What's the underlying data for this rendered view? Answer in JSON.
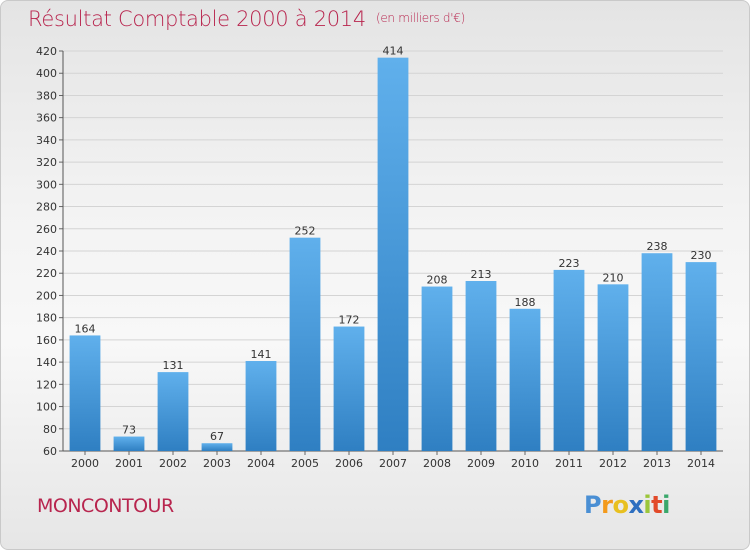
{
  "title": "Résultat Comptable 2000 à 2014",
  "unit_note": "(en milliers d'€)",
  "city": "MONCONTOUR",
  "logo": {
    "letters": [
      "P",
      "r",
      "o",
      "x",
      "i",
      "t",
      "i"
    ],
    "colors": [
      "#4a8fd4",
      "#f39a1c",
      "#e8c020",
      "#2e6fc0",
      "#9bc63a",
      "#e24a2a",
      "#3aa86b"
    ]
  },
  "colors": {
    "title": "#b8254e",
    "bar_light": "#60b0ec",
    "bar_dark": "#2f7fc2"
  },
  "chart_data": {
    "type": "bar",
    "title": "Résultat Comptable 2000 à 2014",
    "xlabel": "",
    "ylabel": "",
    "categories": [
      "2000",
      "2001",
      "2002",
      "2003",
      "2004",
      "2005",
      "2006",
      "2007",
      "2008",
      "2009",
      "2010",
      "2011",
      "2012",
      "2013",
      "2014"
    ],
    "values": [
      164,
      73,
      131,
      67,
      141,
      252,
      172,
      414,
      208,
      213,
      188,
      223,
      210,
      238,
      230
    ],
    "ylim": [
      60,
      420
    ],
    "yticks": [
      60,
      80,
      100,
      120,
      140,
      160,
      180,
      200,
      220,
      240,
      260,
      280,
      300,
      320,
      340,
      360,
      380,
      400,
      420
    ],
    "grid": true,
    "legend": "none"
  }
}
